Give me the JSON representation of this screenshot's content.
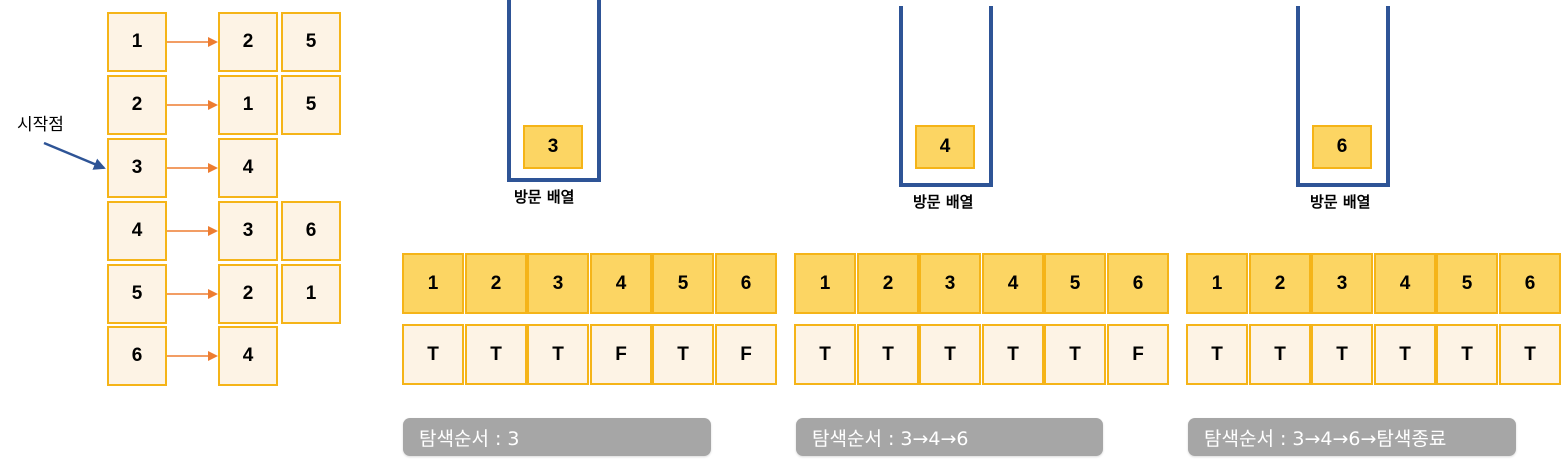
{
  "adjacency": {
    "start_label": "시작점",
    "rows": [
      {
        "node": "1",
        "neighbors": [
          "2",
          "5"
        ]
      },
      {
        "node": "2",
        "neighbors": [
          "1",
          "5"
        ]
      },
      {
        "node": "3",
        "neighbors": [
          "4"
        ]
      },
      {
        "node": "4",
        "neighbors": [
          "3",
          "6"
        ]
      },
      {
        "node": "5",
        "neighbors": [
          "2",
          "1"
        ]
      },
      {
        "node": "6",
        "neighbors": [
          "4"
        ]
      }
    ]
  },
  "steps": [
    {
      "stack_value": "3",
      "stack_label": "방문 배열",
      "indices": [
        "1",
        "2",
        "3",
        "4",
        "5",
        "6"
      ],
      "visited": [
        "T",
        "T",
        "T",
        "F",
        "T",
        "F"
      ],
      "order": "탐색순서 : 3"
    },
    {
      "stack_value": "4",
      "stack_label": "방문 배열",
      "indices": [
        "1",
        "2",
        "3",
        "4",
        "5",
        "6"
      ],
      "visited": [
        "T",
        "T",
        "T",
        "T",
        "T",
        "F"
      ],
      "order": "탐색순서 : 3→4→6"
    },
    {
      "stack_value": "6",
      "stack_label": "방문 배열",
      "indices": [
        "1",
        "2",
        "3",
        "4",
        "5",
        "6"
      ],
      "visited": [
        "T",
        "T",
        "T",
        "T",
        "T",
        "T"
      ],
      "order": "탐색순서 : 3→4→6→탐색종료"
    }
  ],
  "colors": {
    "cell_border": "#f5b418",
    "cell_light": "#fdf3e5",
    "cell_dark": "#fcd563",
    "stack_blue": "#2e5496",
    "arrow_orange": "#ed7d31",
    "start_arrow": "#2e5496",
    "pill_gray": "#a6a6a6"
  }
}
